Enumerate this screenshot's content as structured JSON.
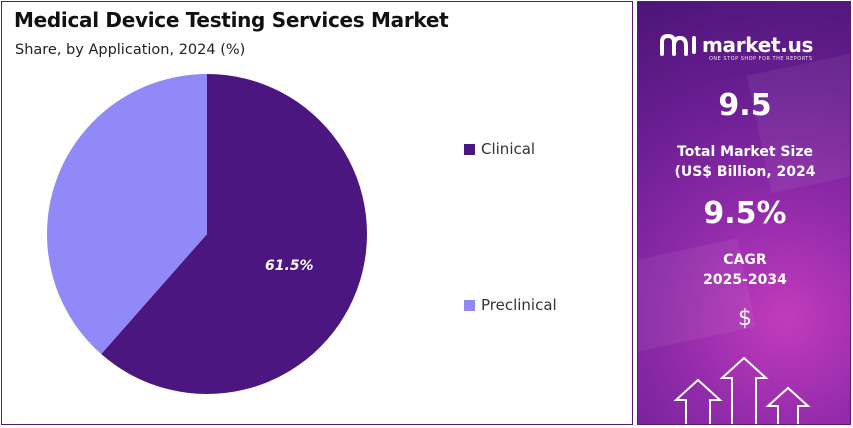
{
  "header": {
    "title": "Medical Device Testing Services Market",
    "subtitle": "Share, by Application, 2024 (%)"
  },
  "chart_data": {
    "type": "pie",
    "title": "Medical Device Testing Services Market",
    "subtitle": "Share, by Application, 2024 (%)",
    "categories": [
      "Clinical",
      "Preclinical"
    ],
    "values": [
      61.5,
      38.5
    ],
    "data_labels": [
      "61.5%",
      ""
    ],
    "colors": [
      "#4c1680",
      "#9189f7"
    ],
    "legend_position": "right"
  },
  "legend": {
    "items": [
      {
        "label": "Clinical",
        "color": "#4c1680"
      },
      {
        "label": "Preclinical",
        "color": "#9189f7"
      }
    ]
  },
  "side_panel": {
    "brand_name": "market.us",
    "brand_tagline": "ONE STOP SHOP FOR THE REPORTS",
    "market_size_value": "9.5",
    "market_size_label_line1": "Total Market Size",
    "market_size_label_line2": "(US$ Billion, 2024",
    "cagr_value": "9.5%",
    "cagr_label_line1": "CAGR",
    "cagr_label_line2": "2025-2034",
    "currency_symbol": "$"
  }
}
